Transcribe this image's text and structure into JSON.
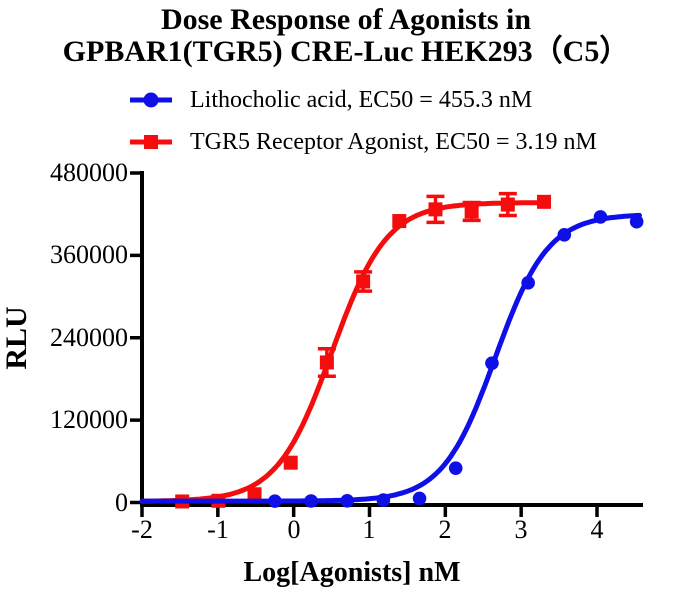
{
  "title": {
    "line1": "Dose Response of Agonists in",
    "line2": "GPBAR1(TGR5) CRE-Luc HEK293（C5）"
  },
  "legend": [
    {
      "label": "Lithocholic acid, EC50 = 455.3 nM",
      "color": "#0f0fe8",
      "marker": "circle"
    },
    {
      "label": "TGR5 Receptor Agonist, EC50 = 3.19 nM",
      "color": "#f50d0d",
      "marker": "square"
    }
  ],
  "chart_data": {
    "type": "line",
    "title": "Dose Response of Agonists in GPBAR1(TGR5) CRE-Luc HEK293（C5）",
    "xlabel": "Log[Agonists] nM",
    "ylabel": "RLU",
    "xlim": [
      -2,
      4.6
    ],
    "ylim": [
      0,
      480000
    ],
    "grid": false,
    "legend_position": "top",
    "x_ticks": [
      "-2",
      "-1",
      "0",
      "1",
      "2",
      "3",
      "4"
    ],
    "x_tick_values": [
      -2,
      -1,
      0,
      1,
      2,
      3,
      4
    ],
    "y_ticks": [
      "480000",
      "360000",
      "240000",
      "120000",
      "0"
    ],
    "y_tick_values": [
      480000,
      360000,
      240000,
      120000,
      0
    ],
    "series": [
      {
        "name": "Lithocholic acid",
        "ec50_label": "EC50 = 455.3 nM",
        "ec50_nM": 455.3,
        "color": "#0f0fe8",
        "marker": "circle",
        "x": [
          -0.248,
          0.229,
          0.706,
          1.183,
          1.66,
          2.137,
          2.615,
          3.092,
          3.569,
          4.046,
          4.523
        ],
        "y": [
          2000,
          2200,
          2500,
          3500,
          6000,
          50000,
          203000,
          320000,
          390000,
          416000,
          409000
        ],
        "sem": [
          500,
          500,
          500,
          800,
          1500,
          3000,
          4000,
          5000,
          4000,
          4000,
          4000
        ],
        "fit": {
          "bottom": 2000,
          "top": 420000,
          "logec50": 2.658,
          "hill": 1.25,
          "xmin": -2,
          "xmax": 4.56
        }
      },
      {
        "name": "TGR5 Receptor Agonist",
        "ec50_label": "EC50 = 3.19 nM",
        "ec50_nM": 3.19,
        "color": "#f50d0d",
        "marker": "square",
        "x": [
          -1.47,
          -0.993,
          -0.516,
          -0.039,
          0.438,
          0.916,
          1.393,
          1.87,
          2.347,
          2.824,
          3.301
        ],
        "y": [
          1500,
          2500,
          12000,
          58000,
          204000,
          322000,
          410000,
          427000,
          424000,
          434000,
          438000
        ],
        "sem": [
          800,
          800,
          1500,
          3000,
          20000,
          14000,
          5000,
          19000,
          13000,
          16000,
          3000
        ],
        "fit": {
          "bottom": 1500,
          "top": 437000,
          "logec50": 0.504,
          "hill": 1.2,
          "xmin": -2,
          "xmax": 3.301
        }
      }
    ]
  }
}
